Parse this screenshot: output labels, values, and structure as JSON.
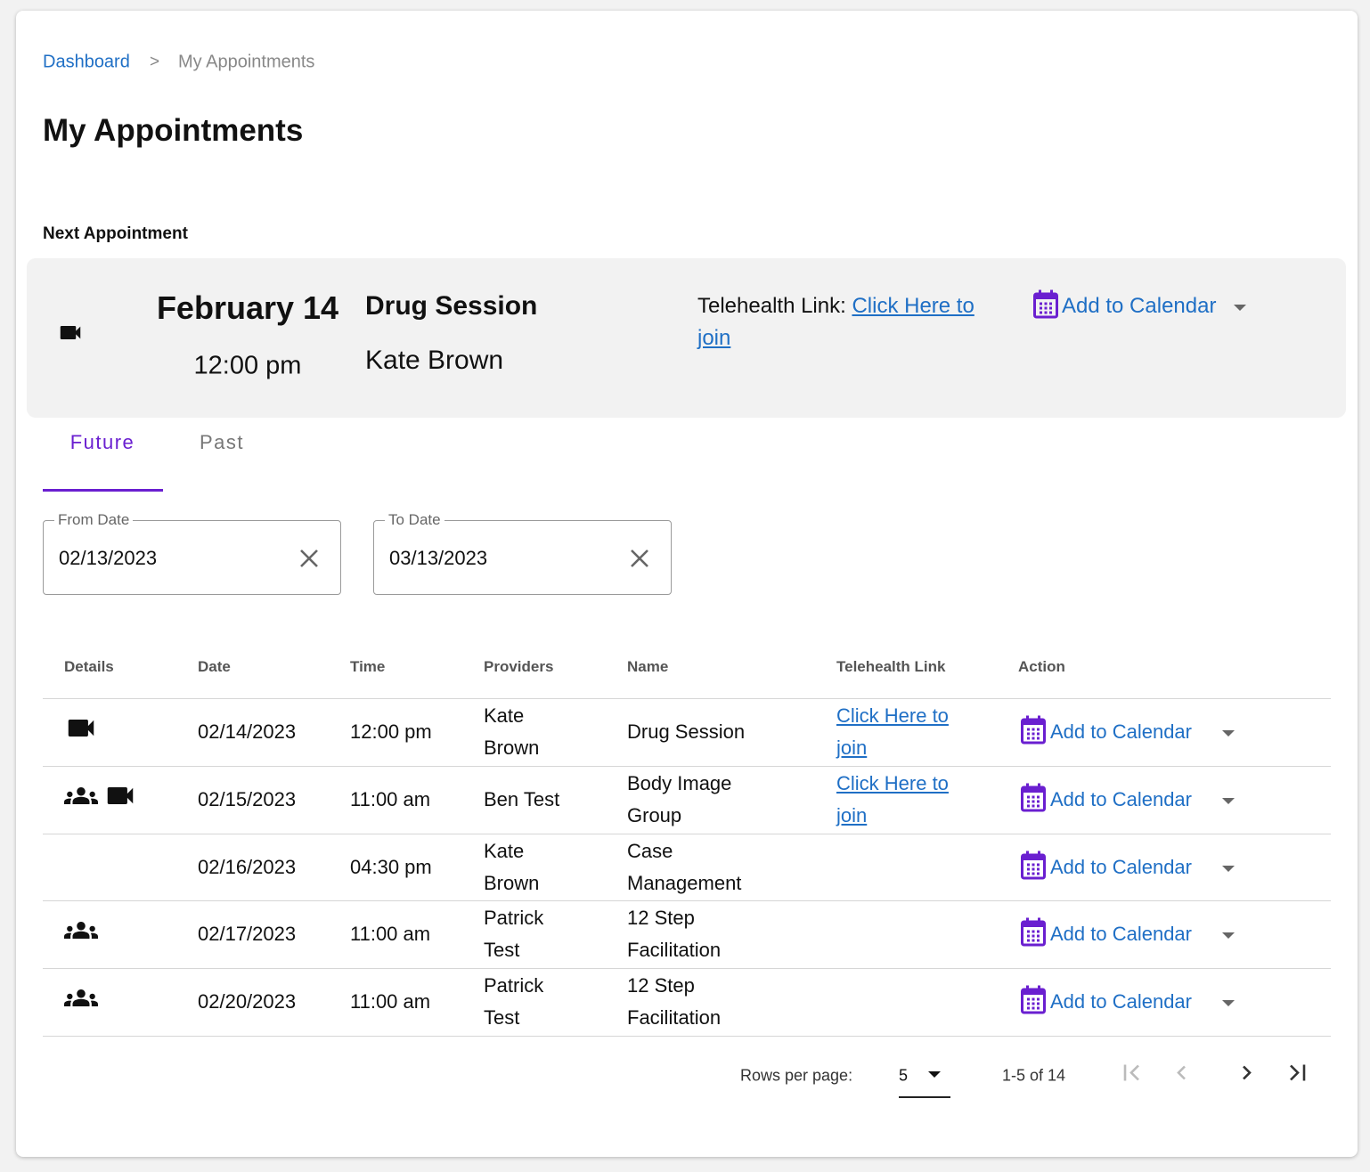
{
  "breadcrumb": {
    "items": [
      "Dashboard",
      "My Appointments"
    ],
    "separator": ">"
  },
  "title": "My Appointments",
  "next_appointment": {
    "heading": "Next Appointment",
    "date": "February 14",
    "time": "12:00 pm",
    "name": "Drug Session",
    "provider": "Kate Brown",
    "telehealth_label": "Telehealth Link:",
    "telehealth_link": "Click Here to join",
    "action": "Add to Calendar"
  },
  "tabs": [
    "Future",
    "Past"
  ],
  "filters": [
    {
      "label": "From Date",
      "value": "02/13/2023"
    },
    {
      "label": "To Date",
      "value": "03/13/2023"
    }
  ],
  "table": {
    "columns": [
      "Details",
      "Date",
      "Time",
      "Providers",
      "Name",
      "Telehealth Link",
      "Action"
    ],
    "rows": [
      {
        "date": "02/14/2023",
        "time": "12:00 pm",
        "provider": "Kate Brown",
        "name": "Drug Session",
        "link": "Click Here to join",
        "action": "Add to Calendar"
      },
      {
        "date": "02/15/2023",
        "time": "11:00 am",
        "provider": "Ben Test",
        "name": "Body Image Group",
        "link": "Click Here to join",
        "action": "Add to Calendar"
      },
      {
        "date": "02/16/2023",
        "time": "04:30 pm",
        "provider": "Kate Brown",
        "name": "Case Management",
        "action": "Add to Calendar"
      },
      {
        "date": "02/17/2023",
        "time": "11:00 am",
        "provider": "Patrick Test",
        "name": "12 Step Facilitation",
        "action": "Add to Calendar"
      },
      {
        "date": "02/20/2023",
        "time": "11:00 am",
        "provider": "Patrick Test",
        "name": "12 Step Facilitation",
        "action": "Add to Calendar"
      }
    ]
  },
  "pagination": {
    "rows_per_page_label": "Rows per page:",
    "rows_per_page": 5,
    "range": "1-5 of 14"
  }
}
